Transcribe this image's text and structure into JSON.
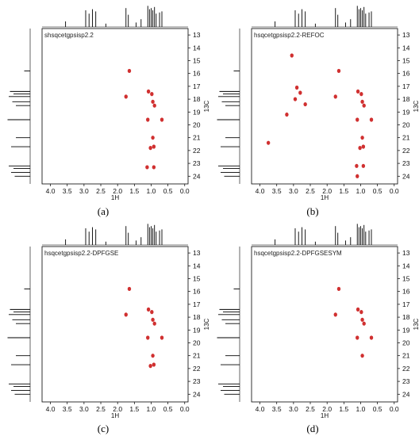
{
  "chart_data": [
    {
      "type": "scatter",
      "panel_label": "(a)",
      "title": "shsqcetgpsisp2.2",
      "xlabel": "1H",
      "ylabel": "13C",
      "xlim": [
        4.25,
        -0.1
      ],
      "ylim": [
        12.5,
        24.6
      ],
      "x_ticks": [
        "4.0",
        "3.5",
        "3.0",
        "2.5",
        "2.0",
        "1.5",
        "1.0",
        "0.5",
        "0.0"
      ],
      "y_ticks": [
        "13",
        "14",
        "15",
        "16",
        "17",
        "18",
        "19",
        "20",
        "21",
        "22",
        "23",
        "24"
      ],
      "peaks": [
        {
          "x": 1.65,
          "y": 15.8
        },
        {
          "x": 1.75,
          "y": 17.8
        },
        {
          "x": 1.08,
          "y": 17.4
        },
        {
          "x": 0.98,
          "y": 17.6
        },
        {
          "x": 0.95,
          "y": 18.2
        },
        {
          "x": 0.9,
          "y": 18.5
        },
        {
          "x": 1.1,
          "y": 19.6
        },
        {
          "x": 0.68,
          "y": 19.6
        },
        {
          "x": 0.95,
          "y": 21.0
        },
        {
          "x": 1.02,
          "y": 21.8
        },
        {
          "x": 0.92,
          "y": 21.7
        },
        {
          "x": 1.12,
          "y": 23.3
        },
        {
          "x": 0.92,
          "y": 23.3
        }
      ]
    },
    {
      "type": "scatter",
      "panel_label": "(b)",
      "title": "hsqcetgpsisp2.2-REFOC",
      "xlabel": "1H",
      "ylabel": "13C",
      "xlim": [
        4.25,
        -0.1
      ],
      "ylim": [
        12.5,
        24.6
      ],
      "x_ticks": [
        "4.0",
        "3.5",
        "3.0",
        "2.5",
        "2.0",
        "1.5",
        "1.0",
        "0.5",
        "0.0"
      ],
      "y_ticks": [
        "13",
        "14",
        "15",
        "16",
        "17",
        "18",
        "19",
        "20",
        "21",
        "22",
        "23",
        "24"
      ],
      "peaks": [
        {
          "x": 3.05,
          "y": 14.6
        },
        {
          "x": 1.65,
          "y": 15.8
        },
        {
          "x": 2.9,
          "y": 17.1
        },
        {
          "x": 2.8,
          "y": 17.5
        },
        {
          "x": 2.95,
          "y": 18.0
        },
        {
          "x": 2.65,
          "y": 18.4
        },
        {
          "x": 3.2,
          "y": 19.2
        },
        {
          "x": 1.75,
          "y": 17.8
        },
        {
          "x": 1.08,
          "y": 17.4
        },
        {
          "x": 0.98,
          "y": 17.6
        },
        {
          "x": 0.95,
          "y": 18.2
        },
        {
          "x": 0.9,
          "y": 18.5
        },
        {
          "x": 1.1,
          "y": 19.6
        },
        {
          "x": 0.68,
          "y": 19.6
        },
        {
          "x": 0.95,
          "y": 21.0
        },
        {
          "x": 1.02,
          "y": 21.8
        },
        {
          "x": 0.92,
          "y": 21.7
        },
        {
          "x": 3.75,
          "y": 21.4
        },
        {
          "x": 1.12,
          "y": 23.2
        },
        {
          "x": 0.92,
          "y": 23.2
        },
        {
          "x": 1.1,
          "y": 24.0
        }
      ]
    },
    {
      "type": "scatter",
      "panel_label": "(c)",
      "title": "hsqcetgpsisp2.2-DPFGSE",
      "xlabel": "1H",
      "ylabel": "13C",
      "xlim": [
        4.25,
        -0.1
      ],
      "ylim": [
        12.5,
        24.6
      ],
      "x_ticks": [
        "4.0",
        "3.5",
        "3.0",
        "2.5",
        "2.0",
        "1.5",
        "1.0",
        "0.5",
        "0.0"
      ],
      "y_ticks": [
        "13",
        "14",
        "15",
        "16",
        "17",
        "18",
        "19",
        "20",
        "21",
        "22",
        "23",
        "24"
      ],
      "peaks": [
        {
          "x": 1.65,
          "y": 15.8
        },
        {
          "x": 1.75,
          "y": 17.8
        },
        {
          "x": 1.08,
          "y": 17.4
        },
        {
          "x": 0.98,
          "y": 17.6
        },
        {
          "x": 0.95,
          "y": 18.2
        },
        {
          "x": 0.9,
          "y": 18.5
        },
        {
          "x": 1.1,
          "y": 19.6
        },
        {
          "x": 0.68,
          "y": 19.6
        },
        {
          "x": 0.95,
          "y": 21.0
        },
        {
          "x": 1.02,
          "y": 21.8
        },
        {
          "x": 0.92,
          "y": 21.7
        }
      ]
    },
    {
      "type": "scatter",
      "panel_label": "(d)",
      "title": "hsqcetgpsisp2.2-DPFGSESYM",
      "xlabel": "1H",
      "ylabel": "13C",
      "xlim": [
        4.25,
        -0.1
      ],
      "ylim": [
        12.5,
        24.6
      ],
      "x_ticks": [
        "4.0",
        "3.5",
        "3.0",
        "2.5",
        "2.0",
        "1.5",
        "1.0",
        "0.5",
        "0.0"
      ],
      "y_ticks": [
        "13",
        "14",
        "15",
        "16",
        "17",
        "18",
        "19",
        "20",
        "21",
        "22",
        "23",
        "24"
      ],
      "peaks": [
        {
          "x": 1.65,
          "y": 15.8
        },
        {
          "x": 1.75,
          "y": 17.8
        },
        {
          "x": 1.08,
          "y": 17.4
        },
        {
          "x": 0.98,
          "y": 17.6
        },
        {
          "x": 0.95,
          "y": 18.2
        },
        {
          "x": 0.9,
          "y": 18.5
        },
        {
          "x": 1.1,
          "y": 19.6
        },
        {
          "x": 0.68,
          "y": 19.6
        },
        {
          "x": 0.95,
          "y": 21.0
        }
      ]
    }
  ],
  "spectrum_1h": [
    {
      "x": 3.55,
      "h": 0.25
    },
    {
      "x": 2.95,
      "h": 0.75
    },
    {
      "x": 2.85,
      "h": 0.6
    },
    {
      "x": 2.75,
      "h": 0.8
    },
    {
      "x": 2.65,
      "h": 0.7
    },
    {
      "x": 2.35,
      "h": 0.15
    },
    {
      "x": 1.75,
      "h": 0.85
    },
    {
      "x": 1.68,
      "h": 0.55
    },
    {
      "x": 1.45,
      "h": 0.2
    },
    {
      "x": 1.3,
      "h": 0.35
    },
    {
      "x": 1.1,
      "h": 0.95
    },
    {
      "x": 1.05,
      "h": 0.8
    },
    {
      "x": 1.0,
      "h": 0.85
    },
    {
      "x": 0.95,
      "h": 0.75
    },
    {
      "x": 0.9,
      "h": 0.9
    },
    {
      "x": 0.85,
      "h": 0.6
    },
    {
      "x": 0.75,
      "h": 0.65
    },
    {
      "x": 0.68,
      "h": 0.7
    }
  ],
  "spectrum_13c": [
    {
      "y": 15.8,
      "h": 0.25
    },
    {
      "y": 17.4,
      "h": 0.85
    },
    {
      "y": 17.6,
      "h": 0.7
    },
    {
      "y": 17.8,
      "h": 0.9
    },
    {
      "y": 18.2,
      "h": 0.75
    },
    {
      "y": 18.5,
      "h": 0.6
    },
    {
      "y": 19.6,
      "h": 0.95
    },
    {
      "y": 21.0,
      "h": 0.6
    },
    {
      "y": 21.7,
      "h": 0.8
    },
    {
      "y": 23.2,
      "h": 0.9
    },
    {
      "y": 23.4,
      "h": 0.7
    },
    {
      "y": 23.7,
      "h": 0.8
    },
    {
      "y": 24.0,
      "h": 0.65
    }
  ],
  "colors": {
    "peak": "#d03030",
    "axis": "#000000",
    "spectrum": "#000000"
  }
}
